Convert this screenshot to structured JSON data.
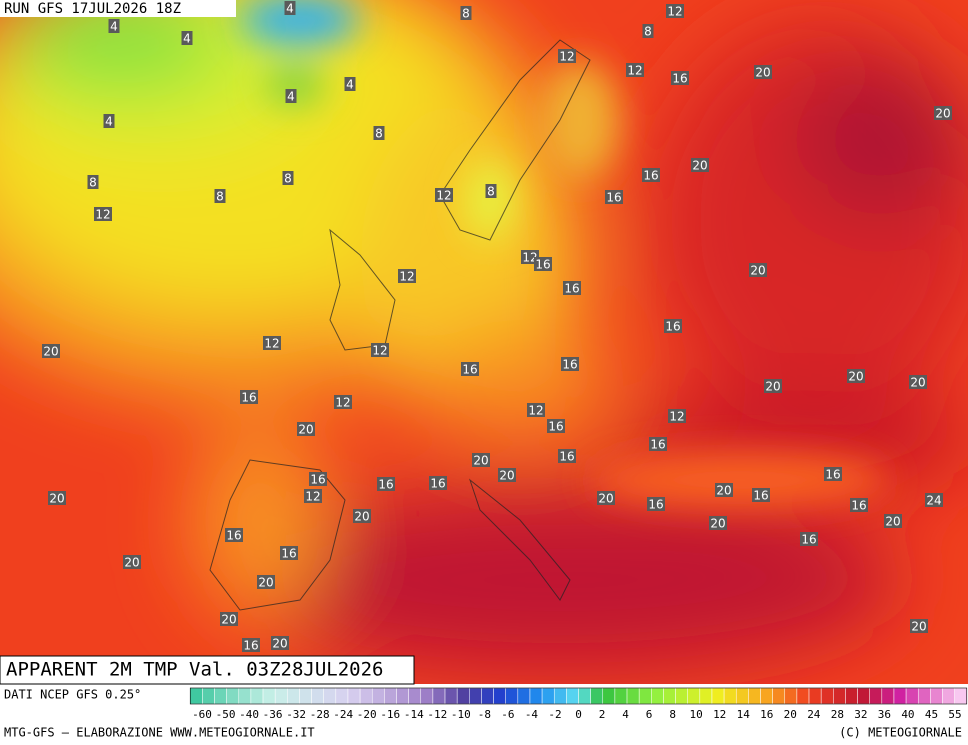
{
  "header": {
    "run": "RUN GFS 17JUL2026 18Z",
    "field": "APPARENT 2M TMP Val. 03Z28JUL2026"
  },
  "map_labels": [
    4,
    8,
    12,
    4,
    4,
    8,
    12,
    12,
    16,
    20,
    4,
    4,
    4,
    8,
    20,
    20,
    16,
    8,
    8,
    8,
    12,
    8,
    16,
    12,
    12,
    16,
    20,
    12,
    16,
    16,
    12,
    12,
    20,
    16,
    16,
    20,
    20,
    20,
    16,
    12,
    12,
    12,
    20,
    16,
    16,
    20,
    20,
    16,
    16,
    16,
    16,
    20,
    16,
    16,
    12,
    20,
    20,
    16,
    16,
    24,
    20,
    20,
    20,
    16,
    16,
    16,
    20,
    20,
    20,
    20,
    16,
    20
  ],
  "legend": {
    "source": "DATI NCEP GFS 0.25°",
    "ticks": [
      -60,
      -50,
      -40,
      -36,
      -32,
      -28,
      -24,
      -20,
      -16,
      -14,
      -12,
      -10,
      -8,
      -6,
      -4,
      -2,
      0,
      2,
      4,
      6,
      8,
      10,
      12,
      14,
      16,
      20,
      24,
      28,
      32,
      36,
      40,
      45,
      55
    ]
  },
  "footer": {
    "left": "MTG-GFS — ELABORAZIONE WWW.METEOGIORNALE.IT",
    "right": "(C) METEOGIORNALE"
  }
}
